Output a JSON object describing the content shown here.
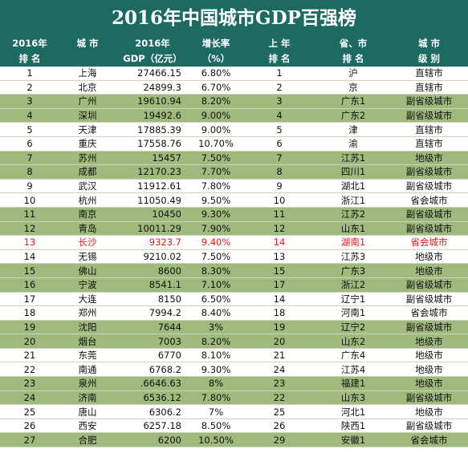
{
  "title": "2016年中国城市GDP百强榜",
  "header": {
    "row1": [
      "2016年",
      "城 市",
      "2016年",
      "增长率",
      "上 年",
      "省、市",
      "城 市"
    ],
    "row2": [
      "排 名",
      "",
      "GDP（亿元）",
      "（%）",
      "排 名",
      "排 名",
      "级 别"
    ]
  },
  "colors": {
    "header_bg": "#1d6a63",
    "row_green": "#9fba7c",
    "highlight_text": "#e31b1b"
  },
  "rows": [
    {
      "rank": "1",
      "city": "上海",
      "gdp": "27466.15",
      "growth": "6.80%",
      "prev": "1",
      "prov": "沪",
      "level": "直辖市"
    },
    {
      "rank": "2",
      "city": "北京",
      "gdp": "24899.3",
      "growth": "6.70%",
      "prev": "2",
      "prov": "京",
      "level": "直辖市"
    },
    {
      "rank": "3",
      "city": "广州",
      "gdp": "19610.94",
      "growth": "8.20%",
      "prev": "3",
      "prov": "广东1",
      "level": "副省级城市"
    },
    {
      "rank": "4",
      "city": "深圳",
      "gdp": "19492.6",
      "growth": "9.00%",
      "prev": "4",
      "prov": "广东2",
      "level": "副省级城市"
    },
    {
      "rank": "5",
      "city": "天津",
      "gdp": "17885.39",
      "growth": "9.00%",
      "prev": "5",
      "prov": "津",
      "level": "直辖市"
    },
    {
      "rank": "6",
      "city": "重庆",
      "gdp": "17558.76",
      "growth": "10.70%",
      "prev": "6",
      "prov": "渝",
      "level": "直辖市"
    },
    {
      "rank": "7",
      "city": "苏州",
      "gdp": "15457",
      "growth": "7.50%",
      "prev": "7",
      "prov": "江苏1",
      "level": "地级市"
    },
    {
      "rank": "8",
      "city": "成都",
      "gdp": "12170.23",
      "growth": "7.70%",
      "prev": "8",
      "prov": "四川1",
      "level": "副省级城市"
    },
    {
      "rank": "9",
      "city": "武汉",
      "gdp": "11912.61",
      "growth": "7.80%",
      "prev": "9",
      "prov": "湖北1",
      "level": "副省级城市"
    },
    {
      "rank": "10",
      "city": "杭州",
      "gdp": "11050.49",
      "growth": "9.50%",
      "prev": "10",
      "prov": "浙江1",
      "level": "省会城市"
    },
    {
      "rank": "11",
      "city": "南京",
      "gdp": "10450",
      "growth": "9.30%",
      "prev": "11",
      "prov": "江苏2",
      "level": "副省级城市"
    },
    {
      "rank": "12",
      "city": "青岛",
      "gdp": "10011.29",
      "growth": "7.90%",
      "prev": "12",
      "prov": "山东1",
      "level": "副省级城市"
    },
    {
      "rank": "13",
      "city": "长沙",
      "gdp": "9323.7",
      "growth": "9.40%",
      "prev": "14",
      "prov": "湖南1",
      "level": "省会城市",
      "highlight": true
    },
    {
      "rank": "14",
      "city": "无锡",
      "gdp": "9210.02",
      "growth": "7.50%",
      "prev": "13",
      "prov": "江苏3",
      "level": "地级市"
    },
    {
      "rank": "15",
      "city": "佛山",
      "gdp": "8600",
      "growth": "8.30%",
      "prev": "15",
      "prov": "广东3",
      "level": "地级市"
    },
    {
      "rank": "16",
      "city": "宁波",
      "gdp": "8541.1",
      "growth": "7.10%",
      "prev": "17",
      "prov": "浙江2",
      "level": "副省级城市"
    },
    {
      "rank": "17",
      "city": "大连",
      "gdp": "8150",
      "growth": "6.50%",
      "prev": "14",
      "prov": "辽宁1",
      "level": "副省级城市"
    },
    {
      "rank": "18",
      "city": "郑州",
      "gdp": "7994.2",
      "growth": "8.40%",
      "prev": "18",
      "prov": "河南1",
      "level": "省会城市"
    },
    {
      "rank": "19",
      "city": "沈阳",
      "gdp": "7644",
      "growth": "3%",
      "prev": "19",
      "prov": "辽宁2",
      "level": "副省级城市"
    },
    {
      "rank": "20",
      "city": "烟台",
      "gdp": "7003",
      "growth": "8.20%",
      "prev": "20",
      "prov": "山东2",
      "level": "地级市"
    },
    {
      "rank": "21",
      "city": "东莞",
      "gdp": "6770",
      "growth": "8.10%",
      "prev": "21",
      "prov": "广东4",
      "level": "地级市"
    },
    {
      "rank": "22",
      "city": "南通",
      "gdp": "6768.2",
      "growth": "9.30%",
      "prev": "24",
      "prov": "江苏4",
      "level": "地级市"
    },
    {
      "rank": "23",
      "city": "泉州",
      "gdp": ".6646.63",
      "growth": "8%",
      "prev": "23",
      "prov": "福建1",
      "level": "地级市"
    },
    {
      "rank": "24",
      "city": "济南",
      "gdp": "6536.12",
      "growth": "7.80%",
      "prev": "22",
      "prov": "山东3",
      "level": "副省级城市"
    },
    {
      "rank": "25",
      "city": "唐山",
      "gdp": "6306.2",
      "growth": "7%",
      "prev": "25",
      "prov": "河北1",
      "level": "地级市"
    },
    {
      "rank": "26",
      "city": "西安",
      "gdp": "6257.18",
      "growth": "8.50%",
      "prev": "26",
      "prov": "陕西1",
      "level": "副省级城市"
    },
    {
      "rank": "27",
      "city": "合肥",
      "gdp": "6200",
      "growth": "10.50%",
      "prev": "29",
      "prov": "安徽1",
      "level": "省会城市"
    }
  ]
}
